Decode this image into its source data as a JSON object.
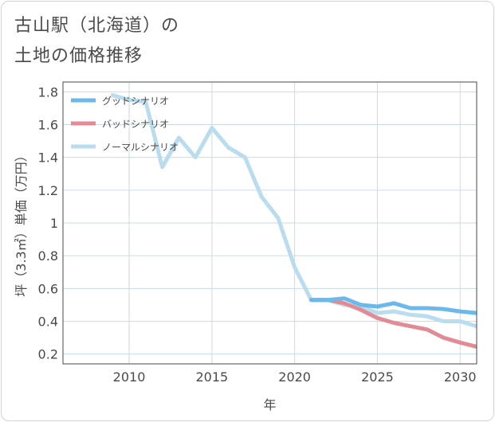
{
  "page": {
    "title_line1": "古山駅（北海道）の",
    "title_line2": "土地の価格推移"
  },
  "chart_data": {
    "type": "line",
    "title": "古山駅（北海道）の土地の価格推移",
    "xlabel": "年",
    "ylabel": "坪（3.3㎡）単価（万円）",
    "xlim": [
      2006,
      2031
    ],
    "ylim": [
      0.14,
      1.86
    ],
    "xticks": [
      2010,
      2015,
      2020,
      2025,
      2030
    ],
    "yticks": [
      0.2,
      0.4,
      0.6,
      0.8,
      1,
      1.2,
      1.4,
      1.6,
      1.8
    ],
    "ytick_labels": [
      "0.2",
      "0.4",
      "0.6",
      "0.8",
      "1",
      "1.2",
      "1.4",
      "1.6",
      "1.8"
    ],
    "grid": true,
    "legend_position": "top-left",
    "series": [
      {
        "name": "ノーマルシナリオ",
        "color": "#b9dcee",
        "x": [
          2009,
          2010,
          2011,
          2012,
          2013,
          2014,
          2015,
          2016,
          2017,
          2018,
          2019,
          2020,
          2021,
          2022,
          2023,
          2024,
          2025,
          2026,
          2027,
          2028,
          2029,
          2030,
          2031
        ],
        "values": [
          1.78,
          1.75,
          1.74,
          1.34,
          1.52,
          1.4,
          1.58,
          1.46,
          1.4,
          1.16,
          1.03,
          0.73,
          0.53,
          0.53,
          0.5,
          0.49,
          0.45,
          0.46,
          0.44,
          0.43,
          0.4,
          0.4,
          0.37
        ]
      },
      {
        "name": "バッドシナリオ",
        "color": "#e38a94",
        "x": [
          2021,
          2022,
          2023,
          2024,
          2025,
          2026,
          2027,
          2028,
          2029,
          2030,
          2031
        ],
        "values": [
          0.53,
          0.53,
          0.51,
          0.47,
          0.42,
          0.39,
          0.37,
          0.35,
          0.3,
          0.27,
          0.245
        ]
      },
      {
        "name": "グッドシナリオ",
        "color": "#6bb9ea",
        "x": [
          2021,
          2022,
          2023,
          2024,
          2025,
          2026,
          2027,
          2028,
          2029,
          2030,
          2031
        ],
        "values": [
          0.53,
          0.53,
          0.54,
          0.5,
          0.49,
          0.51,
          0.48,
          0.48,
          0.475,
          0.46,
          0.45
        ]
      }
    ],
    "legend": [
      {
        "name": "グッドシナリオ",
        "color": "#6bb9ea"
      },
      {
        "name": "バッドシナリオ",
        "color": "#e38a94"
      },
      {
        "name": "ノーマルシナリオ",
        "color": "#b9dcee"
      }
    ]
  }
}
